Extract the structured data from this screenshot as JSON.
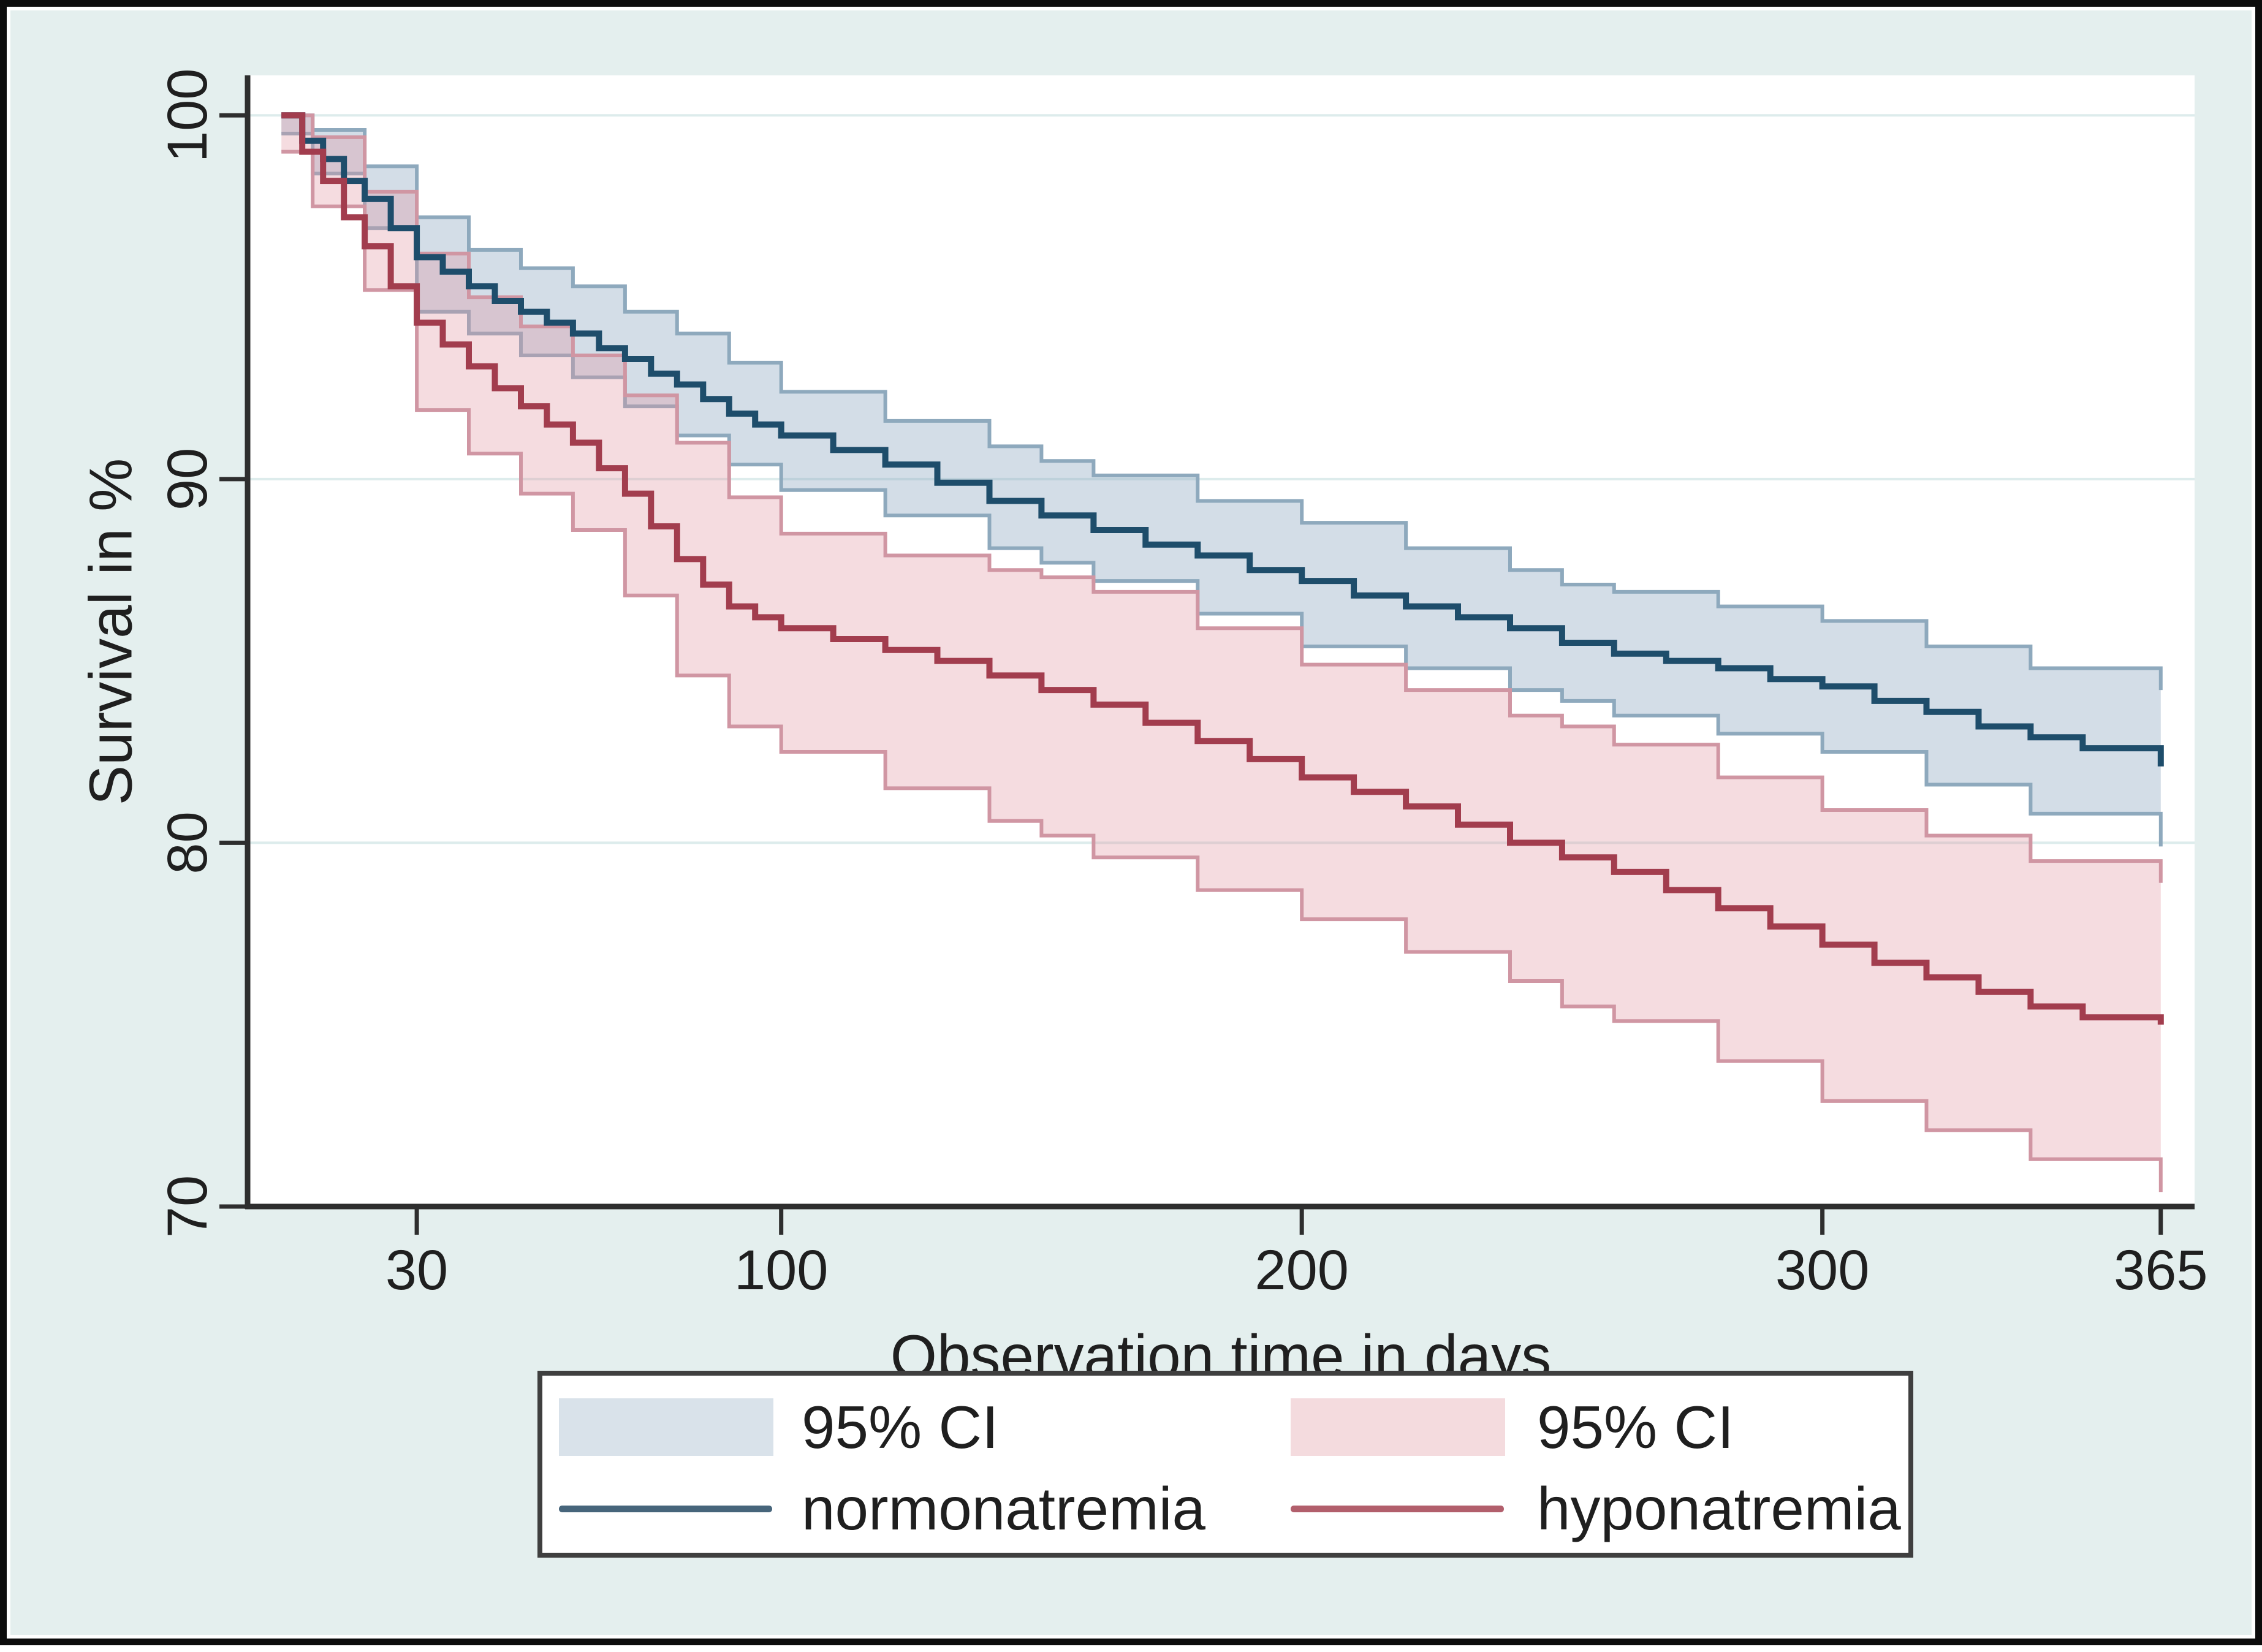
{
  "figure": {
    "background": "#e4efee",
    "border_color": "#0c0c0c",
    "plot_background": "#ffffff"
  },
  "chart_data": {
    "type": "line",
    "subtype": "kaplan-meier-step-with-ci-bands",
    "title": "",
    "xlabel": "Observation time in days",
    "ylabel": "Survival in %",
    "xlim": [
      -2.5,
      371.5
    ],
    "ylim": [
      70,
      101.1
    ],
    "xticks": [
      30,
      100,
      200,
      300,
      365
    ],
    "yticks": [
      70,
      80,
      90,
      100
    ],
    "grid": true,
    "gridline_color": "#ddecec",
    "axis_color": "#2e2e2e",
    "tick_label_color": "#1f1f1f",
    "legend_position": "bottom-center",
    "series": [
      {
        "name": "95% CI normonatremia",
        "kind": "band",
        "fill": "rgba(145,170,195,0.40)",
        "edge_color": "#8ea9bd",
        "x": [
          4,
          10,
          20,
          30,
          40,
          50,
          60,
          70,
          80,
          90,
          100,
          120,
          140,
          150,
          160,
          180,
          200,
          220,
          240,
          250,
          260,
          280,
          300,
          320,
          340,
          365
        ],
        "upper": [
          100,
          99.6,
          98.6,
          97.2,
          96.3,
          95.8,
          95.3,
          94.6,
          94.0,
          93.2,
          92.4,
          91.6,
          90.9,
          90.5,
          90.1,
          89.4,
          88.8,
          88.1,
          87.5,
          87.1,
          86.9,
          86.5,
          86.1,
          85.4,
          84.8,
          84.2
        ],
        "lower": [
          99.5,
          98.4,
          96.9,
          94.6,
          94.0,
          93.4,
          92.8,
          92.0,
          91.2,
          90.4,
          89.7,
          89.0,
          88.1,
          87.7,
          87.2,
          86.3,
          85.4,
          84.8,
          84.2,
          83.9,
          83.5,
          83.0,
          82.5,
          81.6,
          80.8,
          79.9
        ]
      },
      {
        "name": "95% CI hyponatremia",
        "kind": "band",
        "fill": "rgba(225,148,160,0.33)",
        "edge_color": "#d096a3",
        "x": [
          4,
          10,
          20,
          30,
          40,
          50,
          60,
          70,
          80,
          90,
          100,
          120,
          140,
          150,
          160,
          180,
          200,
          220,
          240,
          250,
          260,
          280,
          300,
          320,
          340,
          365
        ],
        "upper": [
          100,
          99.4,
          97.9,
          96.2,
          95.0,
          94.2,
          93.4,
          92.3,
          91.0,
          89.5,
          88.5,
          87.9,
          87.5,
          87.3,
          86.9,
          85.9,
          84.9,
          84.2,
          83.5,
          83.2,
          82.7,
          81.8,
          80.9,
          80.2,
          79.5,
          78.9
        ],
        "lower": [
          99.0,
          97.5,
          95.2,
          91.9,
          90.7,
          89.6,
          88.6,
          86.8,
          84.6,
          83.2,
          82.5,
          81.5,
          80.6,
          80.2,
          79.6,
          78.7,
          77.9,
          77.0,
          76.2,
          75.5,
          75.1,
          74.0,
          72.9,
          72.1,
          71.3,
          70.4
        ]
      },
      {
        "name": "normonatremia",
        "kind": "step-line",
        "color": "#1e4d6b",
        "x": [
          4,
          8,
          12,
          16,
          20,
          25,
          30,
          35,
          40,
          45,
          50,
          55,
          60,
          65,
          70,
          75,
          80,
          85,
          90,
          95,
          100,
          110,
          120,
          130,
          140,
          150,
          160,
          170,
          180,
          190,
          200,
          210,
          220,
          230,
          240,
          250,
          260,
          270,
          280,
          290,
          300,
          310,
          320,
          330,
          340,
          350,
          365
        ],
        "y": [
          100,
          99.3,
          98.8,
          98.2,
          97.7,
          96.9,
          96.1,
          95.7,
          95.3,
          94.9,
          94.6,
          94.3,
          94.0,
          93.6,
          93.3,
          92.9,
          92.6,
          92.2,
          91.8,
          91.5,
          91.2,
          90.8,
          90.4,
          89.9,
          89.4,
          89.0,
          88.6,
          88.2,
          87.9,
          87.5,
          87.2,
          86.8,
          86.5,
          86.2,
          85.9,
          85.5,
          85.2,
          85.0,
          84.8,
          84.5,
          84.3,
          83.9,
          83.6,
          83.2,
          82.9,
          82.6,
          82.1
        ]
      },
      {
        "name": "hyponatremia",
        "kind": "step-line",
        "color": "#a23d4e",
        "x": [
          4,
          8,
          12,
          16,
          20,
          25,
          30,
          35,
          40,
          45,
          50,
          55,
          60,
          65,
          70,
          75,
          80,
          85,
          90,
          95,
          100,
          110,
          120,
          130,
          140,
          150,
          160,
          170,
          180,
          190,
          200,
          210,
          220,
          230,
          240,
          250,
          260,
          270,
          280,
          290,
          300,
          310,
          320,
          330,
          340,
          350,
          365
        ],
        "y": [
          100,
          99.0,
          98.2,
          97.2,
          96.4,
          95.3,
          94.3,
          93.7,
          93.1,
          92.5,
          92.0,
          91.5,
          91.0,
          90.3,
          89.6,
          88.7,
          87.8,
          87.1,
          86.5,
          86.2,
          85.9,
          85.6,
          85.3,
          85.0,
          84.6,
          84.2,
          83.8,
          83.3,
          82.8,
          82.3,
          81.8,
          81.4,
          81.0,
          80.5,
          80.0,
          79.6,
          79.2,
          78.7,
          78.2,
          77.7,
          77.2,
          76.7,
          76.3,
          75.9,
          75.5,
          75.2,
          75.0
        ]
      }
    ]
  },
  "legend": {
    "items": [
      {
        "label": "95% CI",
        "kind": "band",
        "swatch": "#d9e2ea"
      },
      {
        "label": "95% CI",
        "kind": "band",
        "swatch": "#f4dbde"
      },
      {
        "label": "normonatremia",
        "kind": "line",
        "swatch": "#47657b"
      },
      {
        "label": "hyponatremia",
        "kind": "line",
        "swatch": "#b25f6c"
      }
    ]
  }
}
